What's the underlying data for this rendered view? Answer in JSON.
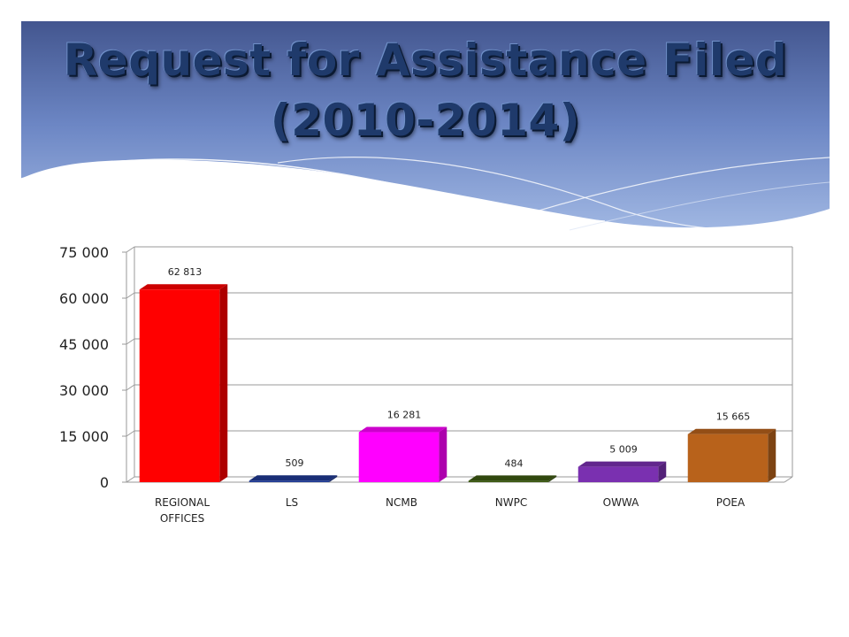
{
  "title": "Request for Assistance Filed (2010-2014)",
  "chart_data": {
    "type": "bar",
    "categories": [
      "REGIONAL OFFICES",
      "LS",
      "NCMB",
      "NWPC",
      "OWWA",
      "POEA"
    ],
    "values": [
      62813,
      509,
      16281,
      484,
      5009,
      15665
    ],
    "data_labels": [
      "62 813",
      "509",
      "16 281",
      "484",
      "5 009",
      "15 665"
    ],
    "colors": [
      "#ff0000",
      "#1f3a93",
      "#ff00ff",
      "#3d5a12",
      "#7a30b0",
      "#b8621b"
    ],
    "ylim": [
      0,
      75000
    ],
    "yticks": [
      0,
      15000,
      30000,
      45000,
      60000,
      75000
    ],
    "ytick_labels": [
      "0",
      "15 000",
      "30 000",
      "45 000",
      "60 000",
      "75 000"
    ],
    "grid": true,
    "title": "",
    "xlabel": "",
    "ylabel": ""
  }
}
